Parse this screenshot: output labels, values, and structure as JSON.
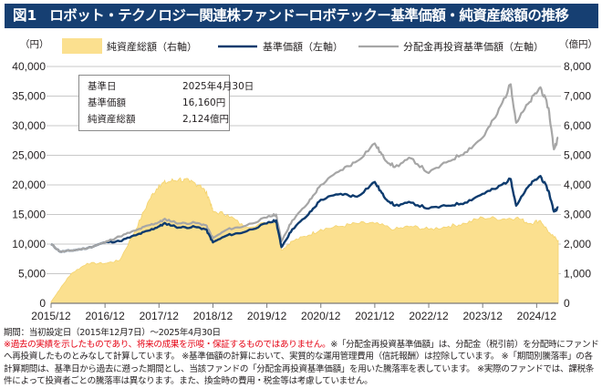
{
  "title": {
    "figure_label": "図1",
    "text": "ロボット・テクノロジー関連株ファンドーロボテックー基準価額・純資産総額の推移"
  },
  "info_box": {
    "rows": [
      {
        "label": "基準日",
        "value": "2025年4月30日"
      },
      {
        "label": "基準価額",
        "value": "16,160円"
      },
      {
        "label": "純資産総額",
        "value": "2,124億円"
      }
    ]
  },
  "notes": {
    "period": "期間：当初設定日（2015年12月7日）～2025年4月30日",
    "warning": "※過去の実績を示したものであり、将来の成果を示唆・保証するものではありません。",
    "body": "※「分配金再投資基準価額」は、分配金（税引前）を分配時にファンドへ再投資したものとみなして計算しています。 ※基準価額の計算において、実質的な運用管理費用（信託報酬）は控除しています。 ※「期間別騰落率」の各計算期間は、基準日から過去に遡った期間とし、当該ファンドの「分配金再投資基準価額」を用いた騰落率を表しています。 ※実際のファンドでは、課税条件によって投資者ごとの騰落率は異なります。また、換金時の費用・税金等は考慮していません。"
  },
  "colors": {
    "title_bg": "#163f72",
    "nav": "#0d3b6e",
    "reinvested": "#a6a6a6",
    "net_assets": "#fbe08f",
    "gridline": "#c8c8c8",
    "warning_text": "#e50012"
  },
  "chart_data": {
    "type": "line",
    "title": "ロボット・テクノロジー関連株ファンドーロボテックー基準価額・純資産総額の推移",
    "xlabel": "",
    "ylabel_left": "（円）",
    "ylabel_right": "（億円）",
    "ylim_left": [
      0,
      40000
    ],
    "ylim_right": [
      0,
      8000
    ],
    "yticks_left": [
      "0",
      "5,000",
      "10,000",
      "15,000",
      "20,000",
      "25,000",
      "30,000",
      "35,000",
      "40,000"
    ],
    "yticks_right": [
      "0",
      "1,000",
      "2,000",
      "3,000",
      "4,000",
      "5,000",
      "6,000",
      "7,000",
      "8,000"
    ],
    "xticks": [
      "2015/12",
      "2016/12",
      "2017/12",
      "2018/12",
      "2019/12",
      "2020/12",
      "2021/12",
      "2022/12",
      "2023/12",
      "2024/12"
    ],
    "x_range": [
      2015.93,
      2025.33
    ],
    "grid": true,
    "legend_position": "top",
    "series": [
      {
        "name": "純資産総額（右軸）",
        "kind": "area",
        "axis": "right",
        "x": [
          2015.93,
          2016.1,
          2016.3,
          2016.6,
          2016.93,
          2017.2,
          2017.5,
          2017.75,
          2017.93,
          2018.1,
          2018.3,
          2018.5,
          2018.7,
          2018.85,
          2018.93,
          2019.2,
          2019.5,
          2019.93,
          2020.1,
          2020.2,
          2020.4,
          2020.7,
          2020.93,
          2021.3,
          2021.6,
          2021.93,
          2022.3,
          2022.6,
          2022.93,
          2023.3,
          2023.6,
          2023.93,
          2024.3,
          2024.55,
          2024.8,
          2025.0,
          2025.2,
          2025.33
        ],
        "values": [
          50,
          500,
          1000,
          1350,
          1350,
          1450,
          2500,
          3500,
          4000,
          4100,
          4200,
          4100,
          4000,
          3600,
          3100,
          3000,
          2600,
          2700,
          2750,
          1800,
          2100,
          2300,
          2500,
          2600,
          2700,
          2700,
          2500,
          2600,
          2500,
          2600,
          2700,
          2900,
          2850,
          2900,
          2700,
          2800,
          2300,
          2124
        ]
      },
      {
        "name": "基準価額（左軸）",
        "kind": "line",
        "axis": "left",
        "x": [
          2015.93,
          2016.1,
          2016.3,
          2016.6,
          2016.93,
          2017.2,
          2017.5,
          2017.75,
          2017.93,
          2018.05,
          2018.3,
          2018.6,
          2018.8,
          2018.93,
          2019.2,
          2019.5,
          2019.93,
          2020.1,
          2020.2,
          2020.4,
          2020.7,
          2020.93,
          2021.3,
          2021.6,
          2021.93,
          2022.1,
          2022.3,
          2022.6,
          2022.93,
          2023.3,
          2023.6,
          2023.93,
          2024.2,
          2024.45,
          2024.55,
          2024.8,
          2025.0,
          2025.15,
          2025.25,
          2025.33
        ],
        "values": [
          10000,
          8700,
          8900,
          9300,
          10300,
          10500,
          11500,
          12300,
          13000,
          13500,
          12800,
          12900,
          12500,
          10300,
          11500,
          12000,
          13500,
          14000,
          9500,
          12500,
          15000,
          17500,
          18500,
          18000,
          20500,
          18000,
          16500,
          17000,
          16000,
          16500,
          17000,
          18500,
          19500,
          21000,
          16500,
          20000,
          21500,
          19000,
          15500,
          16160
        ]
      },
      {
        "name": "分配金再投資基準価額（左軸）",
        "kind": "line",
        "axis": "left",
        "x": [
          2015.93,
          2016.1,
          2016.3,
          2016.6,
          2016.93,
          2017.2,
          2017.5,
          2017.75,
          2017.93,
          2018.05,
          2018.3,
          2018.6,
          2018.8,
          2018.93,
          2019.2,
          2019.5,
          2019.93,
          2020.1,
          2020.2,
          2020.4,
          2020.7,
          2020.93,
          2021.3,
          2021.6,
          2021.93,
          2022.1,
          2022.3,
          2022.6,
          2022.93,
          2023.3,
          2023.6,
          2023.93,
          2024.2,
          2024.45,
          2024.55,
          2024.8,
          2025.0,
          2025.15,
          2025.25,
          2025.33
        ],
        "values": [
          10000,
          8700,
          8900,
          9300,
          10300,
          11300,
          12300,
          13200,
          13700,
          14200,
          13500,
          13600,
          13200,
          11000,
          12500,
          13000,
          14500,
          15000,
          10500,
          14000,
          17000,
          20000,
          22500,
          24000,
          27000,
          24500,
          23000,
          24500,
          22000,
          24000,
          25500,
          28000,
          32000,
          37000,
          30500,
          34000,
          36500,
          33000,
          26000,
          28000
        ]
      }
    ]
  }
}
